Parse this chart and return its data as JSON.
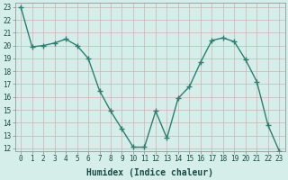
{
  "x": [
    0,
    1,
    2,
    3,
    4,
    5,
    6,
    7,
    8,
    9,
    10,
    11,
    12,
    13,
    14,
    15,
    16,
    17,
    18,
    19,
    20,
    21,
    22,
    23
  ],
  "y": [
    23.0,
    19.9,
    20.0,
    20.2,
    20.5,
    20.0,
    19.0,
    16.5,
    14.9,
    13.5,
    12.1,
    12.1,
    14.9,
    12.8,
    15.9,
    16.8,
    18.7,
    20.4,
    20.6,
    20.3,
    18.9,
    17.2,
    13.8,
    11.8
  ],
  "line_color": "#2e7d6e",
  "marker": "+",
  "marker_size": 4,
  "bg_color": "#d6eeea",
  "grid_color": "#c8b4b4",
  "xlabel": "Humidex (Indice chaleur)",
  "ylim": [
    12,
    23
  ],
  "xlim": [
    -0.5,
    23.5
  ],
  "yticks": [
    12,
    13,
    14,
    15,
    16,
    17,
    18,
    19,
    20,
    21,
    22,
    23
  ],
  "xticks": [
    0,
    1,
    2,
    3,
    4,
    5,
    6,
    7,
    8,
    9,
    10,
    11,
    12,
    13,
    14,
    15,
    16,
    17,
    18,
    19,
    20,
    21,
    22,
    23
  ],
  "tick_label_fontsize": 5.5,
  "xlabel_fontsize": 7,
  "line_width": 1.0
}
